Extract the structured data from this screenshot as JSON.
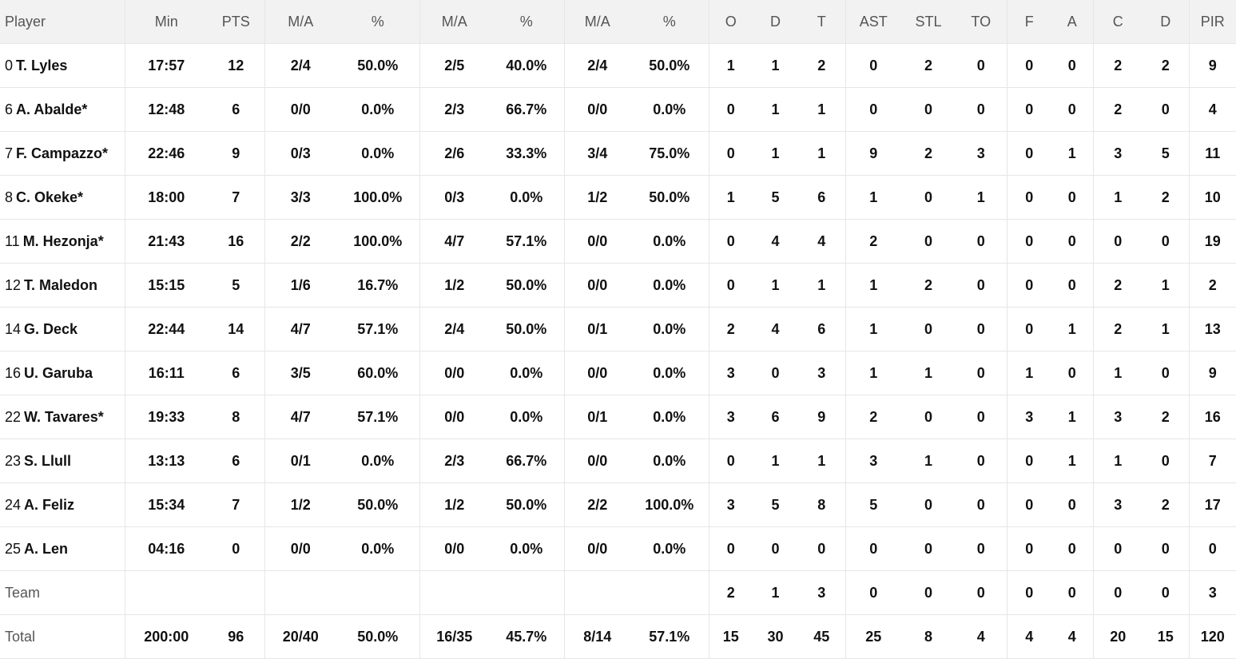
{
  "headers": [
    "Player",
    "Min",
    "PTS",
    "M/A",
    "%",
    "M/A",
    "%",
    "M/A",
    "%",
    "O",
    "D",
    "T",
    "AST",
    "STL",
    "TO",
    "F",
    "A",
    "C",
    "D",
    "PIR"
  ],
  "players": [
    {
      "num": "0",
      "name": "T. Lyles",
      "stats": [
        "17:57",
        "12",
        "2/4",
        "50.0%",
        "2/5",
        "40.0%",
        "2/4",
        "50.0%",
        "1",
        "1",
        "2",
        "0",
        "2",
        "0",
        "0",
        "0",
        "2",
        "2",
        "9"
      ]
    },
    {
      "num": "6",
      "name": "A. Abalde*",
      "stats": [
        "12:48",
        "6",
        "0/0",
        "0.0%",
        "2/3",
        "66.7%",
        "0/0",
        "0.0%",
        "0",
        "1",
        "1",
        "0",
        "0",
        "0",
        "0",
        "0",
        "2",
        "0",
        "4"
      ]
    },
    {
      "num": "7",
      "name": "F. Campazzo*",
      "stats": [
        "22:46",
        "9",
        "0/3",
        "0.0%",
        "2/6",
        "33.3%",
        "3/4",
        "75.0%",
        "0",
        "1",
        "1",
        "9",
        "2",
        "3",
        "0",
        "1",
        "3",
        "5",
        "11"
      ]
    },
    {
      "num": "8",
      "name": "C. Okeke*",
      "stats": [
        "18:00",
        "7",
        "3/3",
        "100.0%",
        "0/3",
        "0.0%",
        "1/2",
        "50.0%",
        "1",
        "5",
        "6",
        "1",
        "0",
        "1",
        "0",
        "0",
        "1",
        "2",
        "10"
      ]
    },
    {
      "num": "11",
      "name": "M. Hezonja*",
      "stats": [
        "21:43",
        "16",
        "2/2",
        "100.0%",
        "4/7",
        "57.1%",
        "0/0",
        "0.0%",
        "0",
        "4",
        "4",
        "2",
        "0",
        "0",
        "0",
        "0",
        "0",
        "0",
        "19"
      ]
    },
    {
      "num": "12",
      "name": "T. Maledon",
      "stats": [
        "15:15",
        "5",
        "1/6",
        "16.7%",
        "1/2",
        "50.0%",
        "0/0",
        "0.0%",
        "0",
        "1",
        "1",
        "1",
        "2",
        "0",
        "0",
        "0",
        "2",
        "1",
        "2"
      ]
    },
    {
      "num": "14",
      "name": "G. Deck",
      "stats": [
        "22:44",
        "14",
        "4/7",
        "57.1%",
        "2/4",
        "50.0%",
        "0/1",
        "0.0%",
        "2",
        "4",
        "6",
        "1",
        "0",
        "0",
        "0",
        "1",
        "2",
        "1",
        "13"
      ]
    },
    {
      "num": "16",
      "name": "U. Garuba",
      "stats": [
        "16:11",
        "6",
        "3/5",
        "60.0%",
        "0/0",
        "0.0%",
        "0/0",
        "0.0%",
        "3",
        "0",
        "3",
        "1",
        "1",
        "0",
        "1",
        "0",
        "1",
        "0",
        "9"
      ]
    },
    {
      "num": "22",
      "name": "W. Tavares*",
      "stats": [
        "19:33",
        "8",
        "4/7",
        "57.1%",
        "0/0",
        "0.0%",
        "0/1",
        "0.0%",
        "3",
        "6",
        "9",
        "2",
        "0",
        "0",
        "3",
        "1",
        "3",
        "2",
        "16"
      ]
    },
    {
      "num": "23",
      "name": "S. Llull",
      "stats": [
        "13:13",
        "6",
        "0/1",
        "0.0%",
        "2/3",
        "66.7%",
        "0/0",
        "0.0%",
        "0",
        "1",
        "1",
        "3",
        "1",
        "0",
        "0",
        "1",
        "1",
        "0",
        "7"
      ]
    },
    {
      "num": "24",
      "name": "A. Feliz",
      "stats": [
        "15:34",
        "7",
        "1/2",
        "50.0%",
        "1/2",
        "50.0%",
        "2/2",
        "100.0%",
        "3",
        "5",
        "8",
        "5",
        "0",
        "0",
        "0",
        "0",
        "3",
        "2",
        "17"
      ]
    },
    {
      "num": "25",
      "name": "A. Len",
      "stats": [
        "04:16",
        "0",
        "0/0",
        "0.0%",
        "0/0",
        "0.0%",
        "0/0",
        "0.0%",
        "0",
        "0",
        "0",
        "0",
        "0",
        "0",
        "0",
        "0",
        "0",
        "0",
        "0"
      ]
    }
  ],
  "team": {
    "label": "Team",
    "stats": [
      "",
      "",
      "",
      "",
      "",
      "",
      "",
      "",
      "2",
      "1",
      "3",
      "0",
      "0",
      "0",
      "0",
      "0",
      "0",
      "0",
      "3"
    ]
  },
  "total": {
    "label": "Total",
    "stats": [
      "200:00",
      "96",
      "20/40",
      "50.0%",
      "16/35",
      "45.7%",
      "8/14",
      "57.1%",
      "15",
      "30",
      "45",
      "25",
      "8",
      "4",
      "4",
      "4",
      "20",
      "15",
      "120"
    ]
  }
}
